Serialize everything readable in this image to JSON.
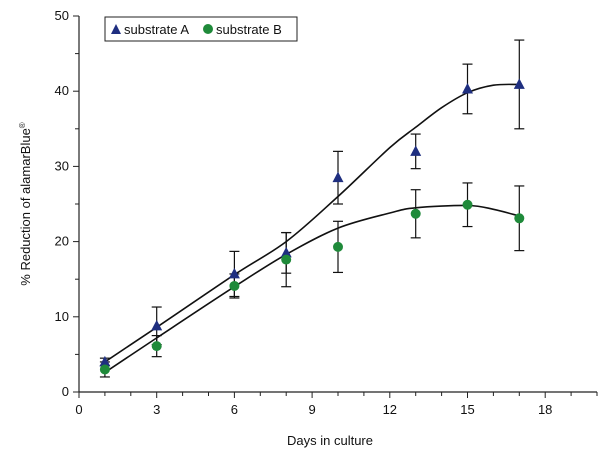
{
  "chart_data": {
    "type": "scatter",
    "title": "",
    "xlabel": "Days in culture",
    "ylabel": "% Reduction of alamarBlue",
    "ylabel_mark": "®",
    "xlim": [
      0,
      20
    ],
    "ylim": [
      0,
      50
    ],
    "xticks": [
      0,
      3,
      6,
      9,
      12,
      15,
      18
    ],
    "yticks": [
      0,
      10,
      20,
      30,
      40,
      50
    ],
    "grid": false,
    "legend_position": "top-left",
    "series": [
      {
        "name": "substrate A",
        "marker": "triangle",
        "color": "#1f2f80",
        "x": [
          1,
          3,
          6,
          8,
          10,
          13,
          15,
          17
        ],
        "y": [
          4.0,
          8.8,
          15.7,
          18.5,
          28.5,
          32.0,
          40.3,
          40.9
        ],
        "err": [
          0.5,
          2.5,
          3.0,
          2.7,
          3.5,
          2.3,
          3.3,
          5.9
        ],
        "trend": [
          [
            1,
            4.0
          ],
          [
            3,
            8.6
          ],
          [
            6,
            15.6
          ],
          [
            8,
            20.0
          ],
          [
            10,
            26.0
          ],
          [
            12,
            32.5
          ],
          [
            13,
            35.2
          ],
          [
            14,
            37.8
          ],
          [
            15,
            39.8
          ],
          [
            16,
            40.8
          ],
          [
            17,
            40.9
          ]
        ]
      },
      {
        "name": "substrate B",
        "marker": "circle",
        "color": "#1f8a3a",
        "x": [
          1,
          3,
          6,
          8,
          10,
          13,
          15,
          17
        ],
        "y": [
          3.0,
          6.1,
          14.1,
          17.6,
          19.3,
          23.7,
          24.9,
          23.1
        ],
        "err": [
          1.0,
          1.4,
          1.6,
          3.6,
          3.4,
          3.2,
          2.9,
          4.3
        ],
        "trend": [
          [
            1,
            2.6
          ],
          [
            3,
            7.2
          ],
          [
            6,
            14.0
          ],
          [
            8,
            18.3
          ],
          [
            10,
            21.8
          ],
          [
            12,
            23.8
          ],
          [
            13,
            24.5
          ],
          [
            15,
            24.8
          ],
          [
            16,
            24.3
          ],
          [
            17,
            23.4
          ]
        ]
      }
    ]
  }
}
